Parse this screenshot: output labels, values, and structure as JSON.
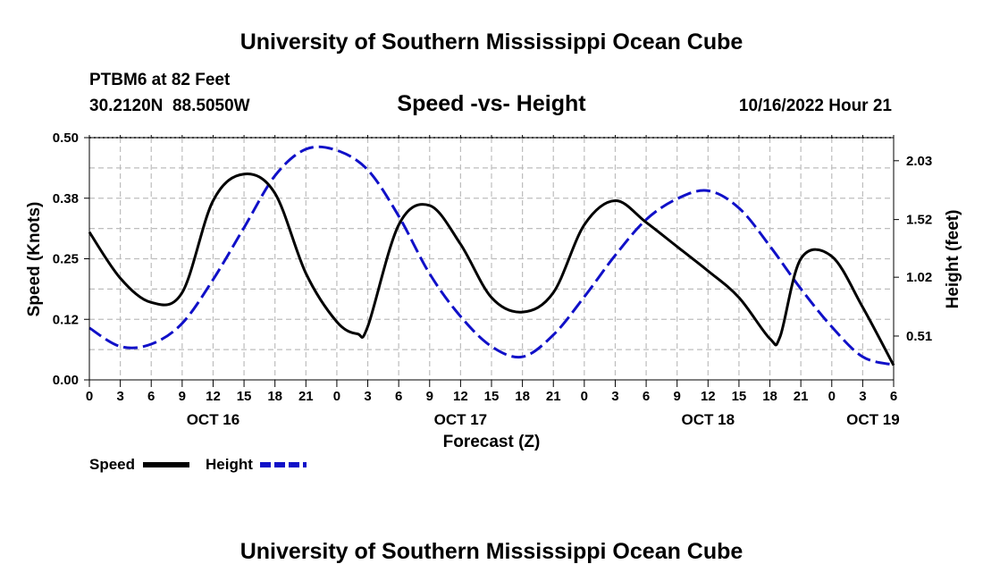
{
  "header": {
    "title_top": "University of Southern Mississippi Ocean Cube",
    "station_line": "PTBM6 at 82 Feet",
    "coords_line": "30.2120N  88.5050W",
    "date_line": "10/16/2022 Hour 21",
    "title_bottom": "University of Southern Mississippi Ocean Cube"
  },
  "chart_data": {
    "type": "line",
    "title": "Speed -vs- Height",
    "xlabel": "Forecast (Z)",
    "ylabel_left": "Speed (Knots)",
    "ylabel_right": "Height (feet)",
    "x_range_hours": [
      0,
      78
    ],
    "y_left_range": [
      0,
      0.5
    ],
    "y_right_range": [
      0.13,
      2.23
    ],
    "grid": true,
    "x_ticks": [
      {
        "h": 0,
        "label": "0"
      },
      {
        "h": 3,
        "label": "3"
      },
      {
        "h": 6,
        "label": "6"
      },
      {
        "h": 9,
        "label": "9"
      },
      {
        "h": 12,
        "label": "12"
      },
      {
        "h": 15,
        "label": "15"
      },
      {
        "h": 18,
        "label": "18"
      },
      {
        "h": 21,
        "label": "21"
      },
      {
        "h": 24,
        "label": "0"
      },
      {
        "h": 27,
        "label": "3"
      },
      {
        "h": 30,
        "label": "6"
      },
      {
        "h": 33,
        "label": "9"
      },
      {
        "h": 36,
        "label": "12"
      },
      {
        "h": 39,
        "label": "15"
      },
      {
        "h": 42,
        "label": "18"
      },
      {
        "h": 45,
        "label": "21"
      },
      {
        "h": 48,
        "label": "0"
      },
      {
        "h": 51,
        "label": "3"
      },
      {
        "h": 54,
        "label": "6"
      },
      {
        "h": 57,
        "label": "9"
      },
      {
        "h": 60,
        "label": "12"
      },
      {
        "h": 63,
        "label": "15"
      },
      {
        "h": 66,
        "label": "18"
      },
      {
        "h": 69,
        "label": "21"
      },
      {
        "h": 72,
        "label": "0"
      },
      {
        "h": 75,
        "label": "3"
      },
      {
        "h": 78,
        "label": "6"
      }
    ],
    "date_labels": [
      {
        "h": 12,
        "label": "OCT 16"
      },
      {
        "h": 36,
        "label": "OCT 17"
      },
      {
        "h": 60,
        "label": "OCT 18"
      },
      {
        "h": 76,
        "label": "OCT 19"
      }
    ],
    "y_left_ticks": [
      {
        "v": 0.0,
        "label": "0.00"
      },
      {
        "v": 0.125,
        "label": "0.12"
      },
      {
        "v": 0.25,
        "label": "0.25"
      },
      {
        "v": 0.375,
        "label": "0.38"
      },
      {
        "v": 0.5,
        "label": "0.50"
      }
    ],
    "y_right_ticks": [
      {
        "v": 0.51,
        "label": "0.51"
      },
      {
        "v": 1.02,
        "label": "1.02"
      },
      {
        "v": 1.52,
        "label": "1.52"
      },
      {
        "v": 2.03,
        "label": "2.03"
      }
    ],
    "series": [
      {
        "name": "Speed",
        "axis": "left",
        "color": "#000000",
        "dash": "solid",
        "points": [
          [
            0,
            0.305
          ],
          [
            3,
            0.21
          ],
          [
            6,
            0.16
          ],
          [
            9,
            0.18
          ],
          [
            12,
            0.37
          ],
          [
            15,
            0.425
          ],
          [
            18,
            0.385
          ],
          [
            21,
            0.22
          ],
          [
            24,
            0.12
          ],
          [
            26,
            0.095
          ],
          [
            27,
            0.11
          ],
          [
            30,
            0.32
          ],
          [
            33,
            0.36
          ],
          [
            36,
            0.28
          ],
          [
            39,
            0.17
          ],
          [
            42,
            0.14
          ],
          [
            45,
            0.18
          ],
          [
            48,
            0.32
          ],
          [
            51,
            0.37
          ],
          [
            54,
            0.325
          ],
          [
            57,
            0.275
          ],
          [
            60,
            0.225
          ],
          [
            63,
            0.17
          ],
          [
            66,
            0.085
          ],
          [
            67,
            0.09
          ],
          [
            69,
            0.25
          ],
          [
            72,
            0.255
          ],
          [
            75,
            0.15
          ],
          [
            78,
            0.03
          ]
        ]
      },
      {
        "name": "Height",
        "axis": "right",
        "color": "#1010c8",
        "dash": "dashed",
        "points": [
          [
            0,
            0.58
          ],
          [
            3,
            0.42
          ],
          [
            6,
            0.44
          ],
          [
            9,
            0.62
          ],
          [
            12,
            1.0
          ],
          [
            15,
            1.45
          ],
          [
            18,
            1.9
          ],
          [
            21,
            2.13
          ],
          [
            24,
            2.12
          ],
          [
            27,
            1.95
          ],
          [
            30,
            1.55
          ],
          [
            33,
            1.05
          ],
          [
            36,
            0.68
          ],
          [
            39,
            0.42
          ],
          [
            42,
            0.33
          ],
          [
            45,
            0.52
          ],
          [
            48,
            0.85
          ],
          [
            51,
            1.21
          ],
          [
            54,
            1.52
          ],
          [
            57,
            1.7
          ],
          [
            60,
            1.77
          ],
          [
            63,
            1.62
          ],
          [
            66,
            1.29
          ],
          [
            69,
            0.92
          ],
          [
            72,
            0.59
          ],
          [
            75,
            0.33
          ],
          [
            78,
            0.26
          ]
        ]
      }
    ]
  },
  "legend": {
    "speed_label": "Speed",
    "height_label": "Height"
  }
}
